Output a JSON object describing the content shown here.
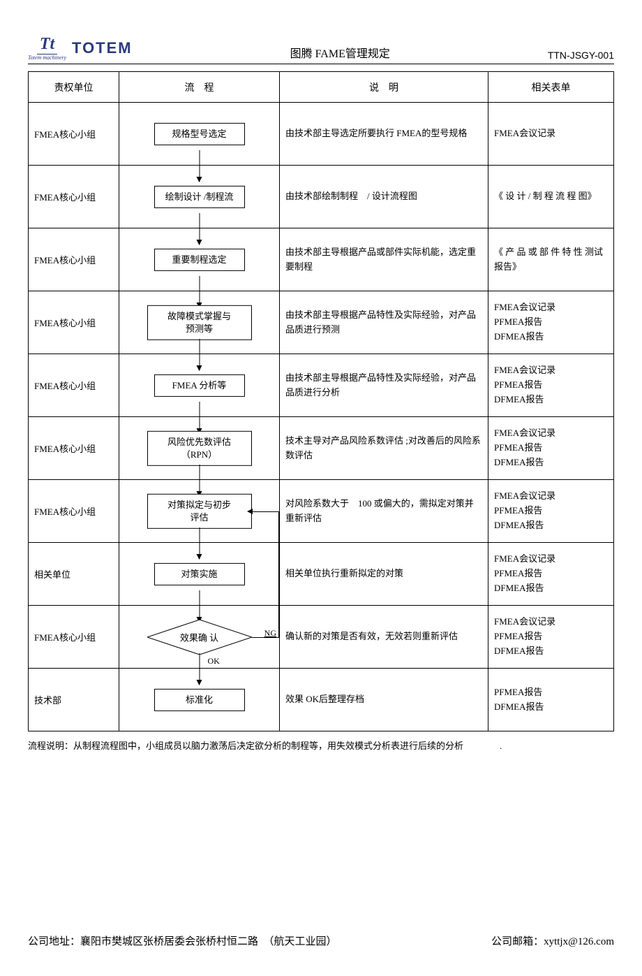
{
  "logo": {
    "sub": "Totem machinery",
    "text": "TOTEM"
  },
  "header": {
    "title": "图腾 FAME管理规定",
    "code": "TTN-JSGY-001"
  },
  "columns": {
    "dept": "责权单位",
    "flow": "流　程",
    "desc": "说　明",
    "form": "相关表单"
  },
  "rows": [
    {
      "dept": "FMEA核心小组",
      "flow": "规格型号选定",
      "desc": "由技术部主导选定所要执行 FMEA的型号规格",
      "form": "FMEA会议记录"
    },
    {
      "dept": "FMEA核心小组",
      "flow": "绘制设计 /制程流",
      "desc": "由技术部绘制制程　/ 设计流程图",
      "form": "《 设 计 / 制 程 流 程 图》"
    },
    {
      "dept": "FMEA核心小组",
      "flow": "重要制程选定",
      "desc": "由技术部主导根据产品或部件实际机能，选定重要制程",
      "form": "《 产 品 或 部 件 特 性 测试报告》"
    },
    {
      "dept": "FMEA核心小组",
      "flow": "故障模式掌握与\n预测等",
      "desc": "由技术部主导根据产品特性及实际经验，对产品品质进行预测",
      "form": "FMEA会议记录\nPFMEA报告\nDFMEA报告"
    },
    {
      "dept": "FMEA核心小组",
      "flow": "FMEA 分析等",
      "desc": "由技术部主导根据产品特性及实际经验，对产品品质进行分析",
      "form": "FMEA会议记录\nPFMEA报告\nDFMEA报告"
    },
    {
      "dept": "FMEA核心小组",
      "flow": "风险优先数评估\n（RPN）",
      "desc": "技术主导对产品风险系数评估 ;对改善后的风险系数评估",
      "form": "FMEA会议记录\nPFMEA报告\nDFMEA报告"
    },
    {
      "dept": "FMEA核心小组",
      "flow": "对策拟定与初步\n评估",
      "desc": "对风险系数大于　100 或偏大的，需拟定对策并重新评估",
      "form": "FMEA会议记录\nPFMEA报告\nDFMEA报告"
    },
    {
      "dept": "相关单位",
      "flow": "对策实施",
      "desc": "相关单位执行重新拟定的对策",
      "form": "FMEA会议记录\nPFMEA报告\nDFMEA报告"
    },
    {
      "dept": "FMEA核心小组",
      "flow": "效果确 认",
      "desc": "确认新的对策是否有效，无效若则重新评估",
      "form": "FMEA会议记录\nPFMEA报告\nDFMEA报告",
      "decision": true,
      "ok": "OK",
      "ng": "NG"
    },
    {
      "dept": "技术部",
      "flow": "标准化",
      "desc": "效果 OK后整理存档",
      "form": "PFMEA报告\nDFMEA报告"
    }
  ],
  "note": "流程说明：从制程流程图中，小组成员以脑力激荡后决定欲分析的制程等，用失效模式分析表进行后续的分析　　　　.",
  "footer": {
    "address": "公司地址：襄阳市樊城区张桥居委会张桥村恒二路　（航天工业园）",
    "email_label": "公司邮箱：",
    "email": "xyttjx@126.com"
  },
  "colors": {
    "brand": "#2a3b7c"
  }
}
